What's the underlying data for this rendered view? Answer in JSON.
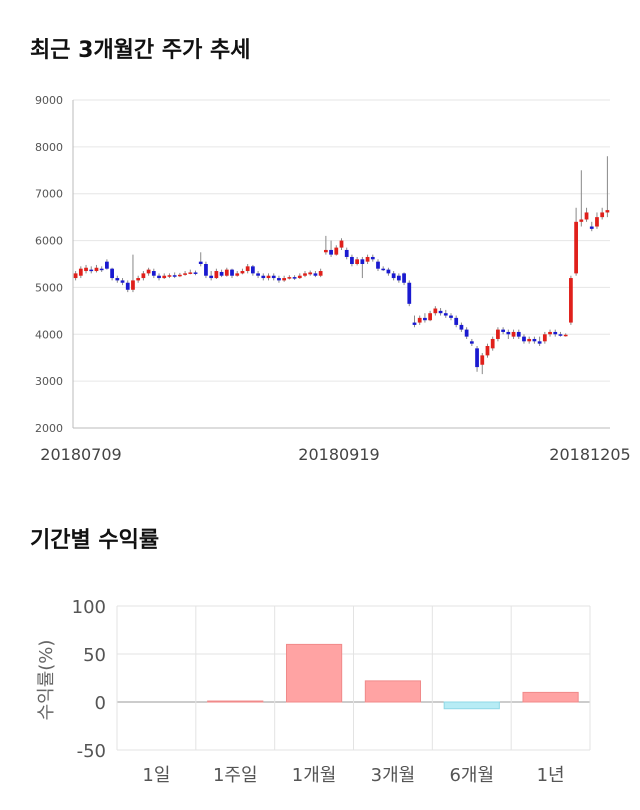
{
  "sections": {
    "price_title": "최근 3개월간 주가 추세",
    "returns_title": "기간별 수익률"
  },
  "chart_data": [
    {
      "type": "candlestick",
      "title": "최근 3개월간 주가 추세",
      "ylim": [
        2000,
        9000
      ],
      "yticks": [
        2000,
        3000,
        4000,
        5000,
        6000,
        7000,
        8000,
        9000
      ],
      "x_tick_labels": [
        "20180709",
        "20180919",
        "20181205"
      ],
      "up_color": "#e0201b",
      "down_color": "#1a1ad0",
      "candles": [
        [
          5200,
          5300,
          5150,
          5350
        ],
        [
          5250,
          5400,
          5200,
          5450
        ],
        [
          5350,
          5420,
          5300,
          5480
        ],
        [
          5380,
          5350,
          5300,
          5450
        ],
        [
          5350,
          5420,
          5320,
          5480
        ],
        [
          5400,
          5380,
          5330,
          5450
        ],
        [
          5550,
          5400,
          5380,
          5600
        ],
        [
          5400,
          5200,
          5150,
          5420
        ],
        [
          5200,
          5150,
          5100,
          5250
        ],
        [
          5150,
          5100,
          5050,
          5200
        ],
        [
          5100,
          4950,
          4900,
          5150
        ],
        [
          4950,
          5150,
          4900,
          5700
        ],
        [
          5150,
          5200,
          5100,
          5250
        ],
        [
          5200,
          5300,
          5150,
          5350
        ],
        [
          5300,
          5380,
          5250,
          5420
        ],
        [
          5350,
          5250,
          5200,
          5400
        ],
        [
          5250,
          5200,
          5150,
          5300
        ],
        [
          5200,
          5250,
          5180,
          5300
        ],
        [
          5230,
          5260,
          5200,
          5300
        ],
        [
          5260,
          5250,
          5200,
          5320
        ],
        [
          5250,
          5270,
          5220,
          5310
        ],
        [
          5280,
          5300,
          5250,
          5350
        ],
        [
          5300,
          5320,
          5280,
          5380
        ],
        [
          5320,
          5300,
          5260,
          5360
        ],
        [
          5550,
          5500,
          5450,
          5750
        ],
        [
          5500,
          5250,
          5200,
          5550
        ],
        [
          5250,
          5200,
          5150,
          5350
        ],
        [
          5200,
          5350,
          5180,
          5400
        ],
        [
          5330,
          5250,
          5220,
          5380
        ],
        [
          5250,
          5380,
          5230,
          5420
        ],
        [
          5380,
          5250,
          5200,
          5400
        ],
        [
          5250,
          5300,
          5230,
          5350
        ],
        [
          5300,
          5350,
          5280,
          5400
        ],
        [
          5350,
          5450,
          5300,
          5500
        ],
        [
          5450,
          5300,
          5250,
          5480
        ],
        [
          5300,
          5250,
          5200,
          5350
        ],
        [
          5250,
          5200,
          5150,
          5300
        ],
        [
          5200,
          5250,
          5150,
          5300
        ],
        [
          5250,
          5200,
          5150,
          5300
        ],
        [
          5200,
          5150,
          5100,
          5250
        ],
        [
          5150,
          5200,
          5120,
          5250
        ],
        [
          5200,
          5220,
          5170,
          5260
        ],
        [
          5220,
          5200,
          5160,
          5260
        ],
        [
          5200,
          5250,
          5180,
          5300
        ],
        [
          5250,
          5300,
          5220,
          5350
        ],
        [
          5280,
          5320,
          5250,
          5360
        ],
        [
          5300,
          5250,
          5220,
          5350
        ],
        [
          5250,
          5350,
          5220,
          5400
        ],
        [
          5750,
          5800,
          5700,
          6100
        ],
        [
          5800,
          5700,
          5650,
          6000
        ],
        [
          5700,
          5850,
          5680,
          5900
        ],
        [
          5850,
          6000,
          5800,
          6050
        ],
        [
          5800,
          5650,
          5600,
          5850
        ],
        [
          5650,
          5500,
          5450,
          5700
        ],
        [
          5500,
          5600,
          5470,
          5650
        ],
        [
          5600,
          5500,
          5200,
          5650
        ],
        [
          5550,
          5650,
          5500,
          5700
        ],
        [
          5650,
          5600,
          5550,
          5700
        ],
        [
          5550,
          5400,
          5350,
          5600
        ],
        [
          5400,
          5380,
          5350,
          5450
        ],
        [
          5380,
          5300,
          5250,
          5420
        ],
        [
          5300,
          5200,
          5150,
          5350
        ],
        [
          5250,
          5150,
          5100,
          5300
        ],
        [
          5300,
          5100,
          5050,
          5320
        ],
        [
          5100,
          4650,
          4600,
          5150
        ],
        [
          4250,
          4200,
          4150,
          4400
        ],
        [
          4250,
          4350,
          4200,
          4400
        ],
        [
          4350,
          4300,
          4250,
          4450
        ],
        [
          4300,
          4450,
          4280,
          4500
        ],
        [
          4450,
          4550,
          4400,
          4600
        ],
        [
          4500,
          4450,
          4400,
          4560
        ],
        [
          4450,
          4400,
          4350,
          4520
        ],
        [
          4400,
          4350,
          4300,
          4450
        ],
        [
          4350,
          4200,
          4150,
          4400
        ],
        [
          4200,
          4100,
          4050,
          4250
        ],
        [
          4100,
          3950,
          3900,
          4150
        ],
        [
          3850,
          3800,
          3750,
          3900
        ],
        [
          3700,
          3300,
          3200,
          3750
        ],
        [
          3350,
          3550,
          3150,
          3600
        ],
        [
          3550,
          3750,
          3500,
          3800
        ],
        [
          3700,
          3900,
          3650,
          3950
        ],
        [
          3900,
          4100,
          3850,
          4150
        ],
        [
          4100,
          4050,
          4000,
          4150
        ],
        [
          4050,
          4000,
          3900,
          4100
        ],
        [
          3950,
          4050,
          3900,
          4100
        ],
        [
          4050,
          3950,
          3900,
          4100
        ],
        [
          3950,
          3850,
          3800,
          4000
        ],
        [
          3850,
          3900,
          3800,
          3950
        ],
        [
          3900,
          3850,
          3800,
          3950
        ],
        [
          3850,
          3800,
          3750,
          3950
        ],
        [
          3850,
          4000,
          3800,
          4050
        ],
        [
          4000,
          4050,
          3950,
          4100
        ],
        [
          4050,
          4000,
          3950,
          4100
        ],
        [
          4000,
          3980,
          3950,
          4050
        ],
        [
          3980,
          3990,
          3950,
          4020
        ],
        [
          4250,
          5200,
          4200,
          5250
        ],
        [
          5300,
          6400,
          5250,
          6700
        ],
        [
          6400,
          6450,
          6300,
          7500
        ],
        [
          6450,
          6600,
          6400,
          6700
        ],
        [
          6300,
          6250,
          6200,
          6400
        ],
        [
          6300,
          6500,
          6250,
          6600
        ],
        [
          6500,
          6600,
          6450,
          6700
        ],
        [
          6600,
          6650,
          6500,
          7800
        ]
      ]
    },
    {
      "type": "bar",
      "title": "기간별 수익률",
      "ylabel": "수익률(%)",
      "ylim": [
        -50,
        100
      ],
      "yticks": [
        -50,
        0,
        50,
        100
      ],
      "categories": [
        "1일",
        "1주일",
        "1개월",
        "3개월",
        "6개월",
        "1년"
      ],
      "values": [
        0,
        1,
        60,
        22,
        -7,
        10
      ],
      "positive_color": "#ffa3a3",
      "negative_color": "#b7ecf5"
    }
  ]
}
